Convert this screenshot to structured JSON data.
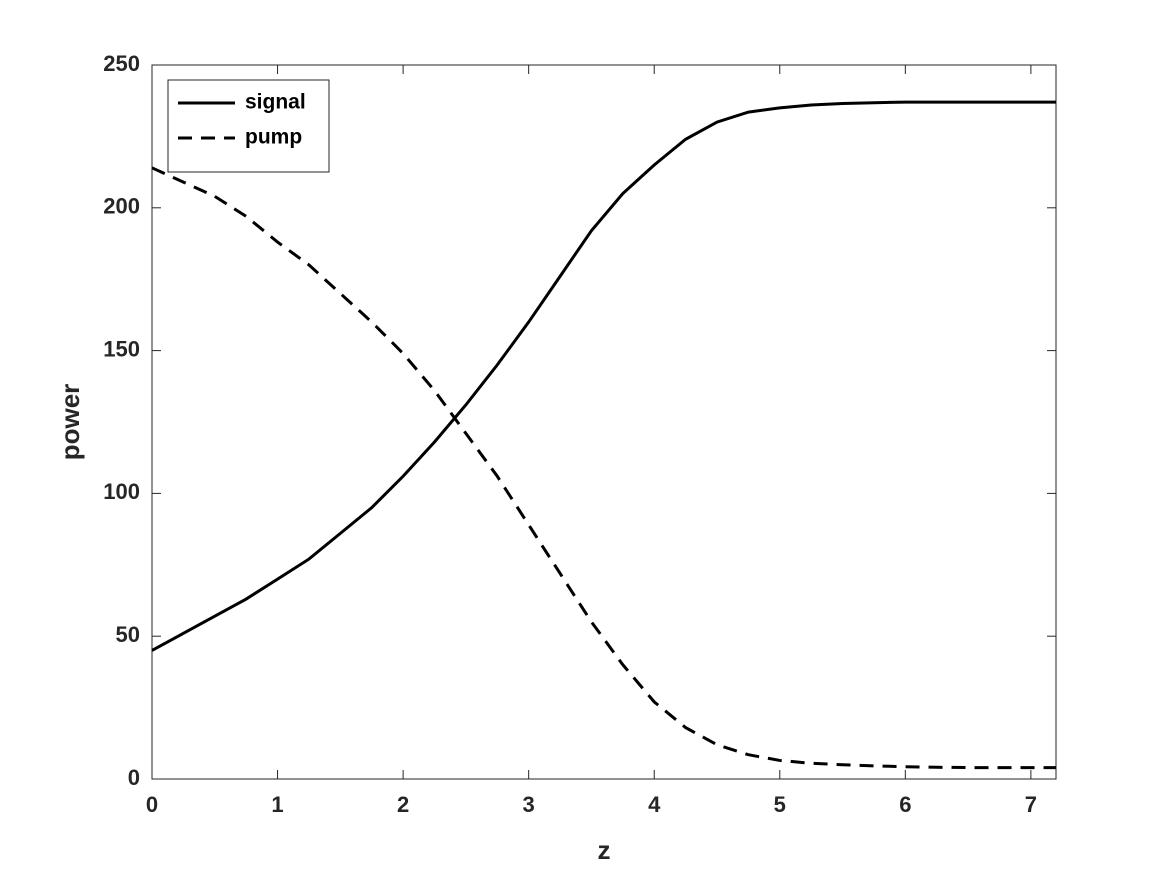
{
  "chart_data": {
    "type": "line",
    "x_label": "z",
    "y_label": "power",
    "x": [
      0,
      0.25,
      0.5,
      0.75,
      1,
      1.25,
      1.5,
      1.75,
      2,
      2.25,
      2.5,
      2.75,
      3,
      3.25,
      3.5,
      3.75,
      4,
      4.25,
      4.5,
      4.75,
      5,
      5.25,
      5.5,
      5.75,
      6,
      6.25,
      6.5,
      6.75,
      7,
      7.2
    ],
    "series": [
      {
        "name": "signal",
        "color": "#000000",
        "linestyle": "solid",
        "values": [
          45,
          51,
          57,
          63,
          70,
          77,
          86,
          95,
          106,
          118,
          131,
          145,
          160,
          176,
          192,
          205,
          215,
          224,
          230,
          233.5,
          235,
          236,
          236.5,
          236.8,
          237,
          237,
          237,
          237,
          237,
          237
        ]
      },
      {
        "name": "pump",
        "color": "#000000",
        "linestyle": "dashed",
        "values": [
          214,
          209,
          204,
          197,
          188,
          180,
          170,
          160,
          149,
          136,
          121,
          106,
          89,
          72,
          55,
          40,
          27,
          18,
          12,
          8.5,
          6.5,
          5.5,
          5,
          4.6,
          4.3,
          4.1,
          4,
          4,
          4,
          4
        ]
      }
    ],
    "xlim": [
      0,
      7.2
    ],
    "xticks": [
      0,
      1,
      2,
      3,
      4,
      5,
      6,
      7
    ],
    "ylim": [
      0,
      250
    ],
    "yticks": [
      0,
      50,
      100,
      150,
      200,
      250
    ],
    "grid": false,
    "legend_position": "upper-left"
  }
}
